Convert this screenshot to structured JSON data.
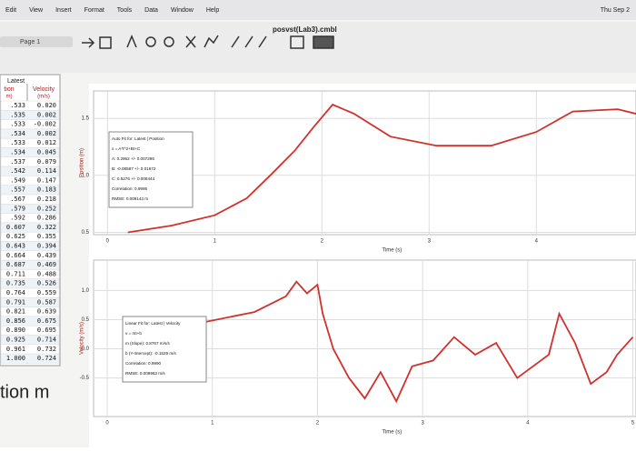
{
  "menu": [
    "Edit",
    "View",
    "Insert",
    "Format",
    "Tools",
    "Data",
    "Window",
    "Help"
  ],
  "date": "Thu Sep 2",
  "file_title": "posvst(Lab3).cmbl",
  "page": "Page 1",
  "table": {
    "title": "Latest",
    "headers": [
      "tion",
      "Velocity"
    ],
    "units": [
      "m)",
      "(m/s)"
    ],
    "rows": [
      [
        ".533",
        "0.020"
      ],
      [
        ".535",
        "0.002"
      ],
      [
        ".533",
        "-0.002"
      ],
      [
        ".534",
        "0.002"
      ],
      [
        ".533",
        "0.012"
      ],
      [
        ".534",
        "0.045"
      ],
      [
        ".537",
        "0.079"
      ],
      [
        ".542",
        "0.114"
      ],
      [
        ".549",
        "0.147"
      ],
      [
        ".557",
        "0.183"
      ],
      [
        ".567",
        "0.218"
      ],
      [
        ".579",
        "0.252"
      ],
      [
        ".592",
        "0.286"
      ],
      [
        "0.607",
        "0.322"
      ],
      [
        "0.625",
        "0.355"
      ],
      [
        "0.643",
        "0.394"
      ],
      [
        "0.664",
        "0.439"
      ],
      [
        "0.687",
        "0.469"
      ],
      [
        "0.711",
        "0.488"
      ],
      [
        "0.735",
        "0.526"
      ],
      [
        "0.764",
        "0.559"
      ],
      [
        "0.791",
        "0.587"
      ],
      [
        "0.821",
        "0.639"
      ],
      [
        "0.856",
        "0.675"
      ],
      [
        "0.890",
        "0.695"
      ],
      [
        "0.925",
        "0.714"
      ],
      [
        "0.961",
        "0.732"
      ],
      [
        "1.000",
        "0.724"
      ]
    ]
  },
  "footer_text": "tion m",
  "graphs": [
    {
      "type": "line",
      "y_label": "Position (m)",
      "x_label": "Time (s)",
      "xlim": [
        -0.13,
        4.93
      ],
      "ylim": [
        0.48,
        1.74
      ],
      "xticks": [
        0,
        1,
        2,
        3,
        4
      ],
      "yticks": [
        1.5,
        {
          "value": 1.0,
          "label": "1.0"
        },
        0.5
      ],
      "grid": true,
      "series": [
        {
          "color": "#d0312d",
          "x": [
            0.19,
            0.6,
            1.0,
            1.3,
            1.54,
            1.75,
            1.92,
            2.1,
            2.3,
            2.64,
            3.07,
            3.58,
            4.0,
            4.34,
            4.76,
            4.93
          ],
          "values": [
            0.5,
            0.56,
            0.65,
            0.8,
            1.02,
            1.22,
            1.42,
            1.62,
            1.54,
            1.34,
            1.26,
            1.26,
            1.38,
            1.56,
            1.58,
            1.54
          ]
        }
      ],
      "fit_box": [
        "Auto Fit for: Latest | Position",
        "x = A*t^2+Bt+C",
        "A: 0.2952 +/- 0.007295",
        "B: -0.08587 +/- 0.01672",
        "C: 0.5276 +/- 0.008444",
        "Correlation: 0.9995",
        "RMSE: 0.009143 m"
      ]
    },
    {
      "type": "line",
      "y_label": "Velocity (m/s)",
      "x_label": "Time (s)",
      "xlim": [
        -0.13,
        5.03
      ],
      "ylim": [
        -1.16,
        1.52
      ],
      "xticks": [
        0,
        1,
        2,
        3,
        4,
        5
      ],
      "yticks": [
        {
          "value": 1.0,
          "label": "1.0"
        },
        0.5,
        {
          "value": 0.0,
          "label": "0.0"
        },
        -0.5
      ],
      "grid": true,
      "series": [
        {
          "color": "#d0312d",
          "x": [
            0.9,
            1.4,
            1.7,
            1.8,
            1.9,
            2.0,
            2.05,
            2.15,
            2.3,
            2.45,
            2.6,
            2.75,
            2.9,
            3.1,
            3.3,
            3.5,
            3.7,
            3.9,
            4.2,
            4.3,
            4.45,
            4.6,
            4.75,
            4.85,
            5.0
          ],
          "values": [
            0.45,
            0.63,
            0.9,
            1.15,
            0.95,
            1.1,
            0.6,
            0.0,
            -0.5,
            -0.85,
            -0.4,
            -0.9,
            -0.3,
            -0.2,
            0.2,
            -0.1,
            0.1,
            -0.5,
            -0.1,
            0.6,
            0.1,
            -0.6,
            -0.4,
            -0.1,
            0.2
          ]
        }
      ],
      "fit_box": [
        "Linear Fit for: Latest | Velocity",
        "v = mt+b",
        "m (Slope): 0.8767 m/s/s",
        "b (Y-Intercept): -0.1529 m/s",
        "Correlation: 0.9990",
        "RMSE: 0.009963 m/s"
      ]
    }
  ]
}
